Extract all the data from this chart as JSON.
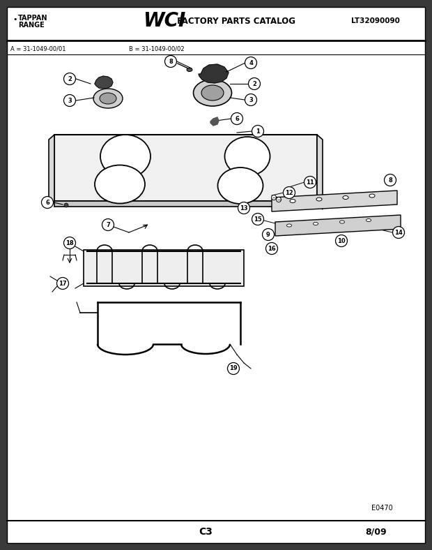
{
  "title_left1": "TAPPAN",
  "title_left2": "RANGE",
  "title_wci": "WCI",
  "title_catalog": "FACTORY PARTS CATALOG",
  "title_right": "LT32090090",
  "sub_a": "A = 31-1049-00/01",
  "sub_b": "B = 31-1049-00/02",
  "footer_left": "C3",
  "footer_right": "8/09",
  "code": "E0470",
  "bg_color": "#ffffff",
  "dark_bg": "#3a3a3a",
  "line_color": "#000000",
  "gray_fill": "#cccccc",
  "light_gray": "#e8e8e8"
}
